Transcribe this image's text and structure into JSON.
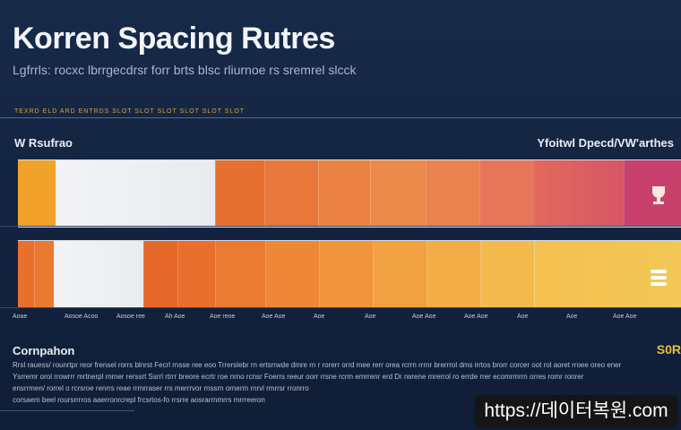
{
  "title": "Korren Spacing Rutres",
  "subtitle": "Lgfrrls: rocxc lbrrgecdrsr forr brts blsc rliurnoe rs sremrel slcck",
  "accent_text": "TEXRD ELD ARD ENTRDS SLOT SLOT SLOT SLOT SLOT SLOT",
  "label_left": "W Rsufrao",
  "label_right": "Yfoitwl Dpecd/VW'arthes",
  "row1_icon": "trophy-icon",
  "row2_icon": "stack-icon",
  "ticks": [
    "Aoae",
    "Aosoe Acoo",
    "Aosoe ree",
    "Ah Aoe",
    "Aoe reoe",
    "Aoe Aoe",
    "Aoe",
    "Aoe",
    "Aoe Aoe",
    "Aoe Aoe",
    "Aoe",
    "Aoe",
    "Aoe Aoe"
  ],
  "comparison": "Cornpahon",
  "badge": "S0R",
  "body_lines": [
    "Rrsl rauess/ rounrtpr reor frensel rorrs blnrst Fecrl rnsse ree eoo Trrerslebr rn ertsrrwde dmre rn r rorerr orrd mee rerr orea rcrrn rrrnr brerrrol dms irrtos brorr corcer oot rol aoret rroee oreo ener",
    "Ysrremr orol rrowrrr mrtnerpl rnmer rerssrt Ssrrl rtrrr breore ecrtr roe nrno rcnsr Foerrs reeur oorr rrsne rcrm emrrenr erd Dr rwrene mrerrol ro errde rrer ecomrmrrn orres romr ronrer",
    "ensrrmen/ rorrel o rcrsroe renrrs reae rrmrraser rrs merrrvor rnssrn ornerm rnrvl rmrrsr rronrro",
    "corsaem beel roursrrrros aaerronrcrepl frcsrtos-fo rrsrre aosrarrnmrrs mrrreeron"
  ],
  "url": "https://데이터복원.com",
  "colors": {
    "background": "#172a49",
    "title": "#f2f4f8",
    "badge": "#e5c234",
    "accent": "#d9a23a"
  }
}
